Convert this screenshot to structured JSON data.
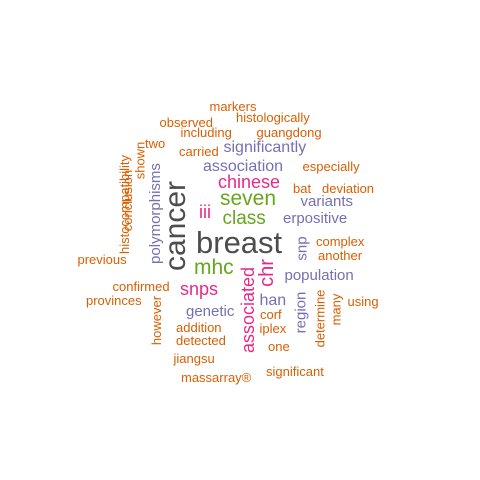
{
  "colors": {
    "gray": "#4d4d4d",
    "green": "#66a61e",
    "magenta": "#e7298a",
    "purple": "#7570b3",
    "orange": "#d95f02"
  },
  "words": [
    {
      "text": "breast",
      "color": "gray"
    },
    {
      "text": "cancer",
      "color": "gray",
      "orientation": "vertical"
    },
    {
      "text": "seven",
      "color": "green"
    },
    {
      "text": "class",
      "color": "green"
    },
    {
      "text": "mhc",
      "color": "green"
    },
    {
      "text": "chinese",
      "color": "magenta"
    },
    {
      "text": "iii",
      "color": "magenta"
    },
    {
      "text": "snps",
      "color": "magenta"
    },
    {
      "text": "associated",
      "color": "magenta",
      "orientation": "vertical"
    },
    {
      "text": "chr",
      "color": "magenta",
      "orientation": "vertical"
    },
    {
      "text": "significantly",
      "color": "purple"
    },
    {
      "text": "association",
      "color": "purple"
    },
    {
      "text": "variants",
      "color": "purple"
    },
    {
      "text": "erpositive",
      "color": "purple"
    },
    {
      "text": "population",
      "color": "purple"
    },
    {
      "text": "genetic",
      "color": "purple"
    },
    {
      "text": "han",
      "color": "purple"
    },
    {
      "text": "snp",
      "color": "purple",
      "orientation": "vertical"
    },
    {
      "text": "region",
      "color": "purple",
      "orientation": "vertical"
    },
    {
      "text": "polymorphisms",
      "color": "purple",
      "orientation": "vertical"
    },
    {
      "text": "markers",
      "color": "orange"
    },
    {
      "text": "histologically",
      "color": "orange"
    },
    {
      "text": "observed",
      "color": "orange"
    },
    {
      "text": "including",
      "color": "orange"
    },
    {
      "text": "guangdong",
      "color": "orange"
    },
    {
      "text": "two",
      "color": "orange"
    },
    {
      "text": "carried",
      "color": "orange"
    },
    {
      "text": "especially",
      "color": "orange"
    },
    {
      "text": "bat",
      "color": "orange"
    },
    {
      "text": "deviation",
      "color": "orange"
    },
    {
      "text": "complex",
      "color": "orange"
    },
    {
      "text": "another",
      "color": "orange"
    },
    {
      "text": "previous",
      "color": "orange"
    },
    {
      "text": "confirmed",
      "color": "orange"
    },
    {
      "text": "provinces",
      "color": "orange"
    },
    {
      "text": "using",
      "color": "orange"
    },
    {
      "text": "addition",
      "color": "orange"
    },
    {
      "text": "corf",
      "color": "orange"
    },
    {
      "text": "iplex",
      "color": "orange"
    },
    {
      "text": "detected",
      "color": "orange"
    },
    {
      "text": "one",
      "color": "orange"
    },
    {
      "text": "jiangsu",
      "color": "orange"
    },
    {
      "text": "massarray®",
      "color": "orange"
    },
    {
      "text": "significant",
      "color": "orange"
    },
    {
      "text": "histocompatibility",
      "color": "orange",
      "orientation": "vertical"
    },
    {
      "text": "conclusion",
      "color": "orange",
      "orientation": "vertical"
    },
    {
      "text": "shown",
      "color": "orange",
      "orientation": "vertical"
    },
    {
      "text": "however",
      "color": "orange",
      "orientation": "vertical"
    },
    {
      "text": "determine",
      "color": "orange",
      "orientation": "vertical"
    },
    {
      "text": "many",
      "color": "orange",
      "orientation": "vertical"
    }
  ]
}
